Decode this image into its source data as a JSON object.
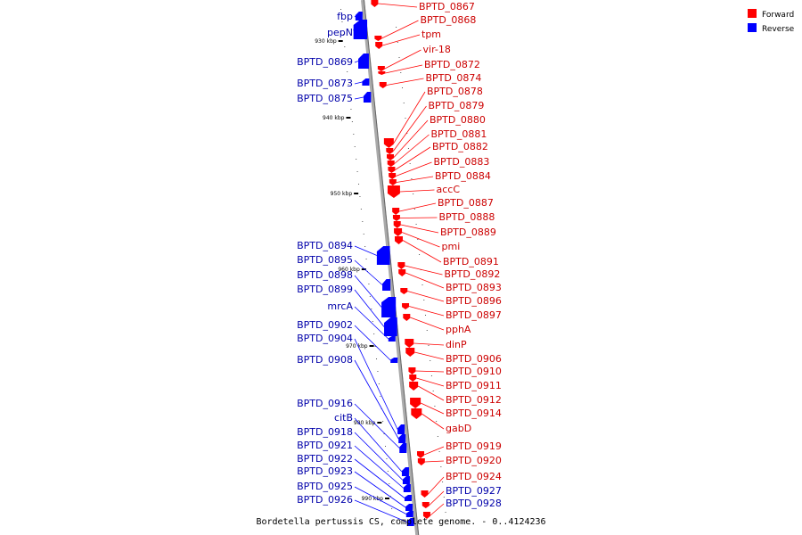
{
  "caption": "Bordetella pertussis CS, complete genome. - 0..4124236",
  "legend": [
    {
      "label": "Forward",
      "color": "#ff0000"
    },
    {
      "label": "Reverse",
      "color": "#0000ff"
    }
  ],
  "colors": {
    "forward": "#ff0000",
    "reverse": "#0000ff",
    "forward_label": "#cc0000",
    "reverse_label": "#0000aa",
    "backbone": "#999999"
  },
  "ticks": [
    "930 kbp",
    "940 kbp",
    "950 kbp",
    "960 kbp",
    "970 kbp",
    "980 kbp",
    "990 kbp"
  ],
  "reverse_genes": [
    "fbp",
    "pepN",
    "BPTD_0869",
    "BPTD_0873",
    "BPTD_0875",
    "BPTD_0894",
    "BPTD_0895",
    "BPTD_0898",
    "BPTD_0899",
    "mrcA",
    "BPTD_0902",
    "BPTD_0904",
    "BPTD_0908",
    "BPTD_0916",
    "citB",
    "BPTD_0918",
    "BPTD_0921",
    "BPTD_0922",
    "BPTD_0923",
    "BPTD_0925",
    "BPTD_0926"
  ],
  "forward_genes": [
    "BPTD_0867",
    "BPTD_0868",
    "tpm",
    "vir-18",
    "BPTD_0872",
    "BPTD_0874",
    "BPTD_0878",
    "BPTD_0879",
    "BPTD_0880",
    "BPTD_0881",
    "BPTD_0882",
    "BPTD_0883",
    "BPTD_0884",
    "accC",
    "BPTD_0887",
    "BPTD_0888",
    "BPTD_0889",
    "pmi",
    "BPTD_0891",
    "BPTD_0892",
    "BPTD_0893",
    "BPTD_0896",
    "BPTD_0897",
    "pphA",
    "dinP",
    "BPTD_0906",
    "BPTD_0910",
    "BPTD_0911",
    "BPTD_0912",
    "BPTD_0914",
    "gabD",
    "BPTD_0919",
    "BPTD_0920",
    "BPTD_0924",
    "BPTD_0927",
    "BPTD_0928"
  ]
}
